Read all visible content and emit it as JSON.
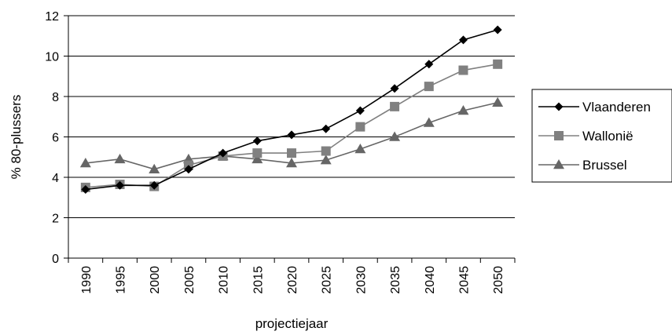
{
  "chart_data": {
    "type": "line",
    "xlabel": "projectiejaar",
    "ylabel": "% 80-plussers",
    "ylim": [
      0,
      12
    ],
    "yticks": [
      0,
      2,
      4,
      6,
      8,
      10,
      12
    ],
    "grid": "horizontal",
    "legend_position": "right",
    "categories": [
      "1990",
      "1995",
      "2000",
      "2005",
      "2010",
      "2015",
      "2020",
      "2025",
      "2030",
      "2035",
      "2040",
      "2045",
      "2050"
    ],
    "series": [
      {
        "name": "Vlaanderen",
        "color": "#000000",
        "marker": "diamond",
        "values": [
          3.4,
          3.6,
          3.6,
          4.4,
          5.2,
          5.8,
          6.1,
          6.4,
          7.3,
          8.4,
          9.6,
          10.8,
          11.3
        ]
      },
      {
        "name": "Wallonië",
        "color": "#808080",
        "marker": "square",
        "values": [
          3.5,
          3.65,
          3.55,
          4.6,
          5.05,
          5.2,
          5.2,
          5.3,
          6.5,
          7.5,
          8.5,
          9.3,
          9.6
        ]
      },
      {
        "name": "Brussel",
        "color": "#666666",
        "marker": "triangle",
        "values": [
          4.7,
          4.9,
          4.4,
          4.9,
          5.05,
          4.9,
          4.7,
          4.85,
          5.4,
          6.0,
          6.7,
          7.3,
          7.7
        ]
      }
    ]
  }
}
